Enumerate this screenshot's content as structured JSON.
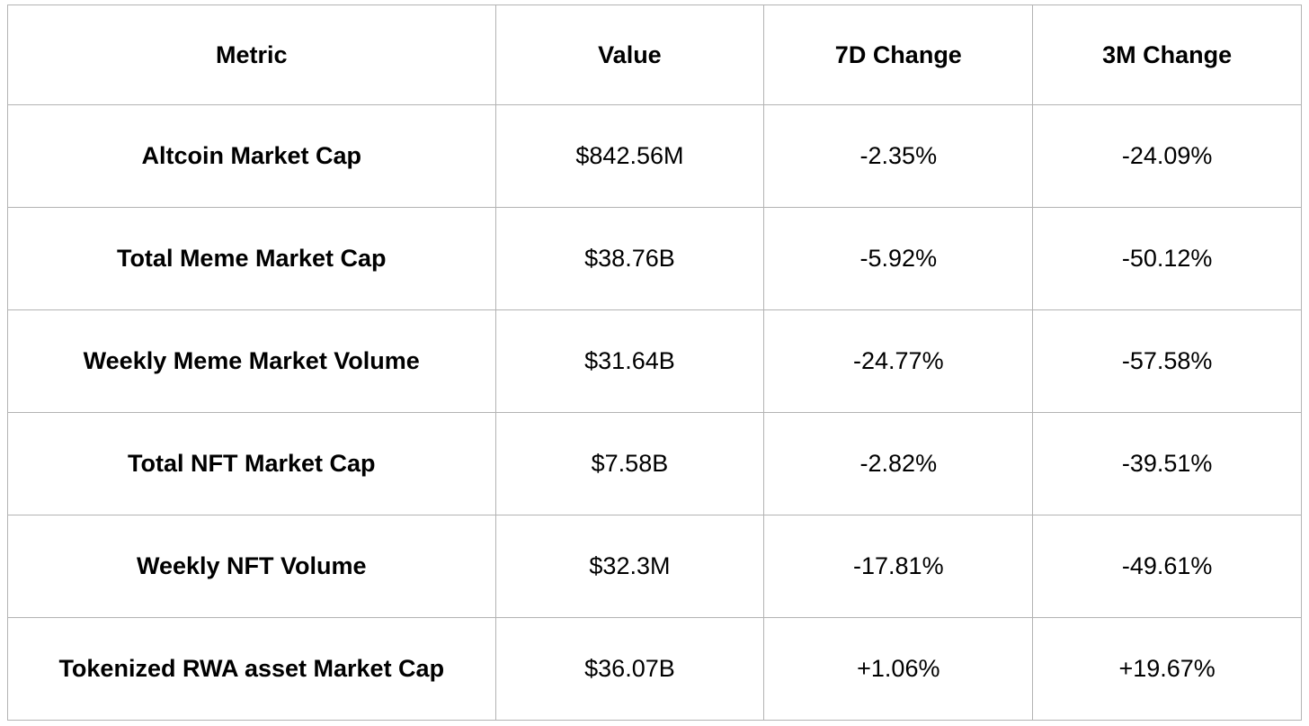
{
  "table": {
    "headers": [
      "Metric",
      "Value",
      "7D Change",
      "3M Change"
    ],
    "rows": [
      {
        "metric": "Altcoin Market Cap",
        "value": "$842.56M",
        "change_7d": "-2.35%",
        "change_3m": "-24.09%"
      },
      {
        "metric": "Total Meme Market Cap",
        "value": "$38.76B",
        "change_7d": "-5.92%",
        "change_3m": "-50.12%"
      },
      {
        "metric": "Weekly Meme Market Volume",
        "value": "$31.64B",
        "change_7d": "-24.77%",
        "change_3m": "-57.58%"
      },
      {
        "metric": "Total NFT Market Cap",
        "value": "$7.58B",
        "change_7d": "-2.82%",
        "change_3m": "-39.51%"
      },
      {
        "metric": "Weekly NFT Volume",
        "value": "$32.3M",
        "change_7d": "-17.81%",
        "change_3m": "-49.61%"
      },
      {
        "metric": "Tokenized RWA asset Market Cap",
        "value": "$36.07B",
        "change_7d": "+1.06%",
        "change_3m": "+19.67%"
      }
    ]
  },
  "chart_data": {
    "type": "table",
    "title": "",
    "columns": [
      "Metric",
      "Value",
      "7D Change",
      "3M Change"
    ],
    "rows": [
      [
        "Altcoin Market Cap",
        "$842.56M",
        "-2.35%",
        "-24.09%"
      ],
      [
        "Total Meme Market Cap",
        "$38.76B",
        "-5.92%",
        "-50.12%"
      ],
      [
        "Weekly Meme Market Volume",
        "$31.64B",
        "-24.77%",
        "-57.58%"
      ],
      [
        "Total NFT Market Cap",
        "$7.58B",
        "-2.82%",
        "-39.51%"
      ],
      [
        "Weekly NFT Volume",
        "$32.3M",
        "-17.81%",
        "-49.61%"
      ],
      [
        "Tokenized RWA asset Market Cap",
        "$36.07B",
        "+1.06%",
        "+19.67%"
      ]
    ],
    "numeric": {
      "values_usd": [
        842560000,
        38760000000,
        31640000000,
        7580000000,
        32300000,
        36070000000
      ],
      "change_7d_pct": [
        -2.35,
        -5.92,
        -24.77,
        -2.82,
        -17.81,
        1.06
      ],
      "change_3m_pct": [
        -24.09,
        -50.12,
        -57.58,
        -39.51,
        -49.61,
        19.67
      ]
    }
  },
  "colors": {
    "text": "#000000",
    "border": "#b3b3b3",
    "background": "#ffffff"
  }
}
